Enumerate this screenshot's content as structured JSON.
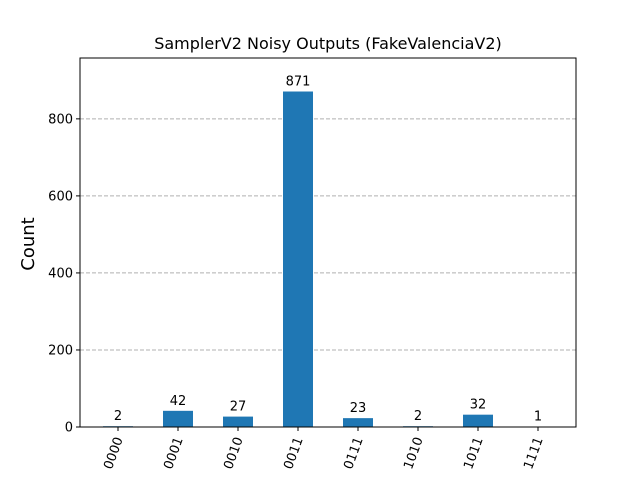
{
  "chart_data": {
    "type": "bar",
    "title": "SamplerV2 Noisy Outputs (FakeValenciaV2)",
    "xlabel": "",
    "ylabel": "Count",
    "categories": [
      "0000",
      "0001",
      "0010",
      "0011",
      "0111",
      "1010",
      "1011",
      "1111"
    ],
    "values": [
      2,
      42,
      27,
      871,
      23,
      2,
      32,
      1
    ],
    "ylim": [
      0,
      958
    ],
    "yticks": [
      0,
      200,
      400,
      600,
      800
    ],
    "grid": "y-dashed",
    "bar_color": "#1f77b4"
  }
}
